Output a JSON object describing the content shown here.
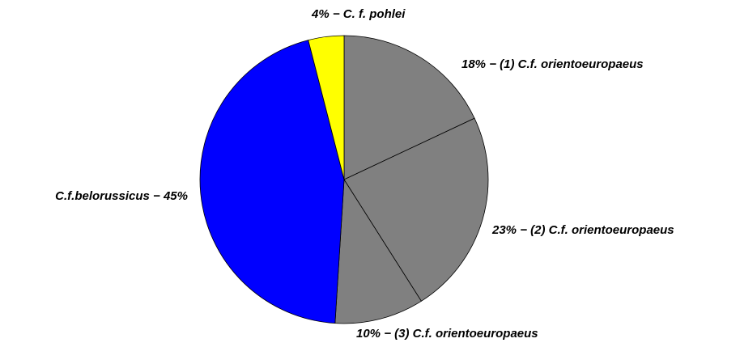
{
  "chart_data": {
    "type": "pie",
    "values": [
      18,
      23,
      10,
      45,
      4
    ],
    "value_labels": [
      "18% − (1) C.f. orientoeuropaeus",
      "23% − (2) C.f. orientoeuropaeus",
      "10% − (3) C.f. orientoeuropaeus",
      "C.f.belorussicus − 45%",
      "4% − C. f. pohlei"
    ],
    "colors": [
      "#808080",
      "#808080",
      "#808080",
      "#0000ff",
      "#ffff00"
    ]
  }
}
